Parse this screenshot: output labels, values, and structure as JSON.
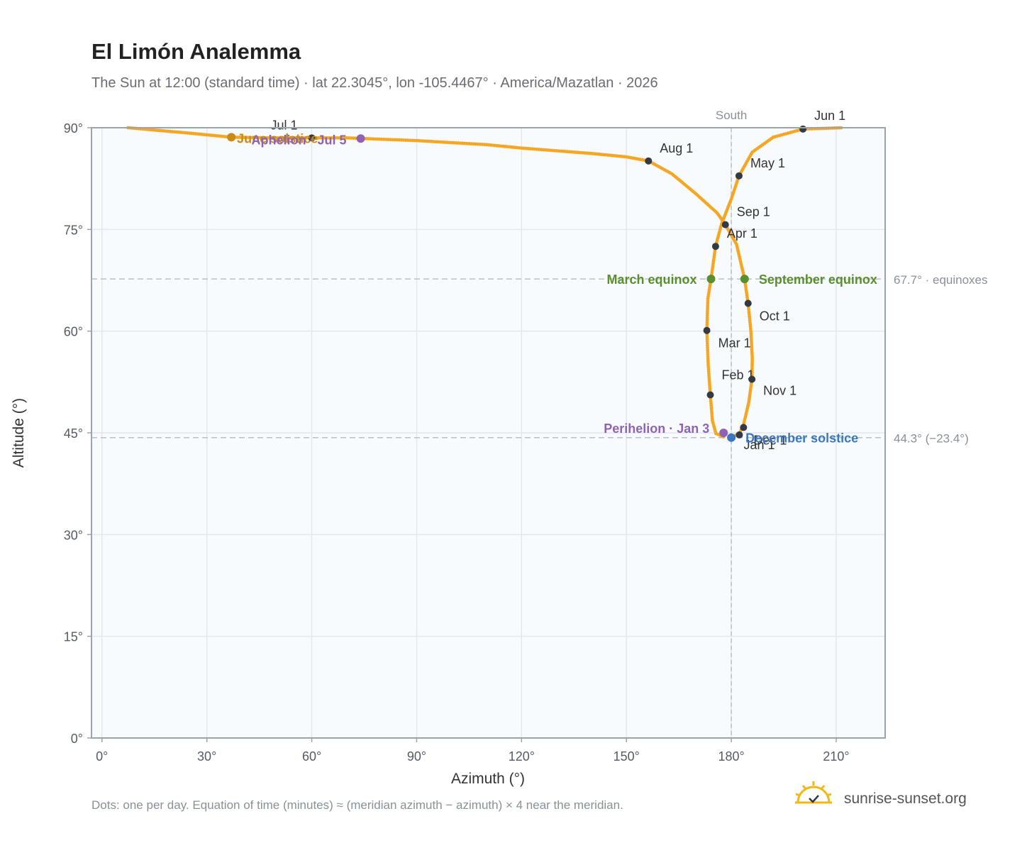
{
  "colors": {
    "path": "#f5a623",
    "month_dot": "#333a44",
    "equinox": "#5b8f2e",
    "december_solstice": "#3b78c0",
    "june_solstice": "#c98a1a",
    "perihelion": "#8e63b5",
    "aphelion": "#8e63b5",
    "grid": "#e3e8ee",
    "frame": "#9aa3ae",
    "plot_bg": "#f8fbfd",
    "reference_line": "#b7c1ca"
  },
  "header": {
    "title": "El Limón Analemma",
    "subtitle": "The Sun at 12:00 (standard time) · lat 22.3045°, lon -105.4467° · America/Mazatlan · 2026"
  },
  "footer": {
    "note": "Dots: one per day. Equation of time (minutes) ≈ (meridian azimuth − azimuth) × 4 near the meridian.",
    "brand": "sunrise-sunset.org",
    "brand_icon": "sunrise-logo-icon"
  },
  "chart_data": {
    "type": "scatter",
    "xlabel": "Azimuth (°)",
    "ylabel": "Altitude (°)",
    "xlim": [
      -3,
      224
    ],
    "ylim": [
      0,
      90
    ],
    "xticks": [
      0,
      30,
      60,
      90,
      120,
      150,
      180,
      210
    ],
    "xtick_labels": [
      "0°",
      "30°",
      "60°",
      "90°",
      "120°",
      "150°",
      "180°",
      "210°"
    ],
    "yticks": [
      0,
      15,
      30,
      45,
      60,
      75,
      90
    ],
    "ytick_labels": [
      "0°",
      "15°",
      "30°",
      "45°",
      "60°",
      "75°",
      "90°"
    ],
    "grid": true,
    "meridian": {
      "azimuth": 180,
      "label": "South"
    },
    "reference_lines": [
      {
        "altitude": 67.7,
        "label": "67.7° · equinoxes"
      },
      {
        "altitude": 44.3,
        "label": "44.3° (−23.4°)"
      }
    ],
    "daily_path": [
      [
        177.8,
        44.4
      ],
      [
        175.6,
        44.9
      ],
      [
        174.6,
        46.8
      ],
      [
        174.0,
        50.6
      ],
      [
        173.4,
        55.0
      ],
      [
        173.0,
        60.1
      ],
      [
        173.3,
        64.8
      ],
      [
        174.2,
        67.7
      ],
      [
        175.5,
        72.5
      ],
      [
        177.2,
        75.8
      ],
      [
        180.0,
        79.5
      ],
      [
        182.2,
        82.9
      ],
      [
        186.0,
        86.4
      ],
      [
        192.0,
        88.6
      ],
      [
        200.5,
        89.8
      ],
      [
        212.0,
        90.0
      ],
      [
        7.5,
        90.0
      ],
      [
        14.0,
        89.7
      ],
      [
        25.0,
        89.2
      ],
      [
        37.0,
        88.6
      ],
      [
        49.0,
        88.5
      ],
      [
        60.0,
        88.5
      ],
      [
        70.0,
        88.5
      ],
      [
        80.0,
        88.3
      ],
      [
        90.0,
        88.1
      ],
      [
        100.0,
        87.8
      ],
      [
        110.0,
        87.5
      ],
      [
        120.0,
        87.0
      ],
      [
        130.0,
        86.6
      ],
      [
        140.0,
        86.2
      ],
      [
        150.0,
        85.7
      ],
      [
        156.3,
        85.1
      ],
      [
        163.0,
        83.2
      ],
      [
        170.0,
        80.2
      ],
      [
        176.0,
        77.4
      ],
      [
        178.3,
        75.7
      ],
      [
        181.5,
        72.8
      ],
      [
        183.8,
        67.7
      ],
      [
        184.8,
        64.1
      ],
      [
        185.6,
        60.0
      ],
      [
        186.0,
        56.0
      ],
      [
        185.9,
        52.9
      ],
      [
        185.0,
        49.5
      ],
      [
        183.5,
        46.2
      ],
      [
        182.6,
        45.2
      ],
      [
        182.2,
        44.9
      ],
      [
        180.0,
        44.3
      ]
    ],
    "month_markers": [
      {
        "label": "Jan 1",
        "azimuth": 182.3,
        "altitude": 44.7
      },
      {
        "label": "Feb 1",
        "azimuth": 174.0,
        "altitude": 50.6
      },
      {
        "label": "Mar 1",
        "azimuth": 173.0,
        "altitude": 60.1
      },
      {
        "label": "Apr 1",
        "azimuth": 175.5,
        "altitude": 72.5
      },
      {
        "label": "May 1",
        "azimuth": 182.2,
        "altitude": 82.9
      },
      {
        "label": "Jun 1",
        "azimuth": 200.5,
        "altitude": 89.8
      },
      {
        "label": "Jul 1",
        "azimuth": 60.0,
        "altitude": 88.5
      },
      {
        "label": "Aug 1",
        "azimuth": 156.3,
        "altitude": 85.1
      },
      {
        "label": "Sep 1",
        "azimuth": 178.3,
        "altitude": 75.7
      },
      {
        "label": "Oct 1",
        "azimuth": 184.8,
        "altitude": 64.1
      },
      {
        "label": "Nov 1",
        "azimuth": 185.9,
        "altitude": 52.9
      },
      {
        "label": "Dec 1",
        "azimuth": 183.5,
        "altitude": 45.8
      }
    ],
    "events": [
      {
        "label": "March equinox",
        "azimuth": 174.2,
        "altitude": 67.7,
        "color_key": "equinox"
      },
      {
        "label": "September equinox",
        "azimuth": 183.8,
        "altitude": 67.7,
        "color_key": "equinox"
      },
      {
        "label": "December solstice",
        "azimuth": 180.0,
        "altitude": 44.3,
        "color_key": "december_solstice"
      },
      {
        "label": "June solstice",
        "azimuth": 37.0,
        "altitude": 88.6,
        "color_key": "june_solstice"
      },
      {
        "label": "Perihelion · Jan 3",
        "azimuth": 177.8,
        "altitude": 45.0,
        "color_key": "perihelion"
      },
      {
        "label": "Aphelion · Jul 5",
        "azimuth": 74.0,
        "altitude": 88.4,
        "color_key": "aphelion"
      }
    ]
  }
}
